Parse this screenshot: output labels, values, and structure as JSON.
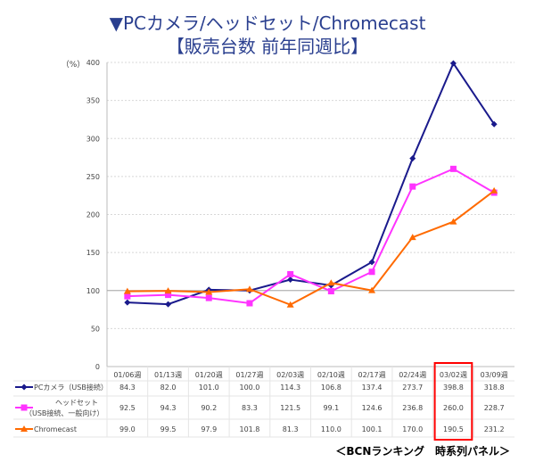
{
  "chart_data": {
    "type": "line",
    "title": "▼PCカメラ/ヘッドセット/Chromecast",
    "subtitle": "【販売台数 前年同週比】",
    "ylabel": "（%）",
    "ylim": [
      0,
      400
    ],
    "yticks": [
      0,
      50,
      100,
      150,
      200,
      250,
      300,
      350,
      400
    ],
    "grid": true,
    "categories": [
      "01/06週",
      "01/13週",
      "01/20週",
      "01/27週",
      "02/03週",
      "02/10週",
      "02/17週",
      "02/24週",
      "03/02週",
      "03/09週"
    ],
    "series": [
      {
        "name": "PCカメラ（USB接続）",
        "name_lines": [
          "PCカメラ（USB接続）"
        ],
        "color": "#1a1a8c",
        "marker": "diamond",
        "values": [
          84.3,
          82.0,
          101.0,
          100.0,
          114.3,
          106.8,
          137.4,
          273.7,
          398.8,
          318.8
        ]
      },
      {
        "name": "ヘッドセット（USB接続、一般向け）",
        "name_lines": [
          "ヘッドセット",
          "（USB接続、一般向け）"
        ],
        "color": "#ff33ff",
        "marker": "square",
        "values": [
          92.5,
          94.3,
          90.2,
          83.3,
          121.5,
          99.1,
          124.6,
          236.8,
          260.0,
          228.7
        ]
      },
      {
        "name": "Chromecast",
        "name_lines": [
          "Chromecast"
        ],
        "color": "#ff6a00",
        "marker": "triangle",
        "values": [
          99.0,
          99.5,
          97.9,
          101.8,
          81.3,
          110.0,
          100.1,
          170.0,
          190.5,
          231.2
        ]
      }
    ],
    "highlight_category": "03/02週",
    "highlight_color": "#ff0000",
    "source": "＜BCNランキング　時系列パネル＞"
  }
}
